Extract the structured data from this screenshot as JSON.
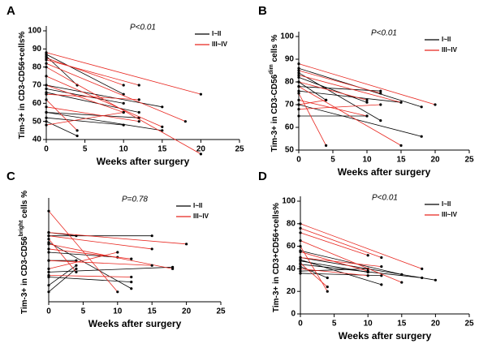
{
  "chart_data": [
    {
      "type": "line",
      "panel": "A",
      "annotation": "P<0.01",
      "x_label": "Weeks after surgery",
      "y_label": [
        {
          "text": "Tim-3+ in CD3-CD56+cells%"
        }
      ],
      "xlim": [
        0,
        25
      ],
      "xticks": [
        0,
        5,
        10,
        15,
        20,
        25
      ],
      "ylim": [
        40,
        100
      ],
      "yticks": [
        40,
        50,
        60,
        70,
        80,
        90,
        100
      ],
      "legend": "upper right",
      "series": [
        {
          "name": "I~II",
          "color": "#000000",
          "lines": [
            {
              "x": [
                0,
                10
              ],
              "y": [
                87,
                65
              ]
            },
            {
              "x": [
                0,
                4
              ],
              "y": [
                86,
                70
              ]
            },
            {
              "x": [
                0,
                15
              ],
              "y": [
                70,
                58
              ]
            },
            {
              "x": [
                0,
                10
              ],
              "y": [
                68,
                60
              ]
            },
            {
              "x": [
                0,
                12
              ],
              "y": [
                66,
                55
              ]
            },
            {
              "x": [
                0,
                15
              ],
              "y": [
                55,
                45
              ]
            },
            {
              "x": [
                0,
                10
              ],
              "y": [
                52,
                48
              ]
            },
            {
              "x": [
                0,
                4
              ],
              "y": [
                50,
                42
              ]
            },
            {
              "x": [
                0,
                12
              ],
              "y": [
                55,
                52
              ]
            }
          ]
        },
        {
          "name": "III~IV",
          "color": "#e8261f",
          "lines": [
            {
              "x": [
                0,
                20
              ],
              "y": [
                88,
                65
              ]
            },
            {
              "x": [
                0,
                10
              ],
              "y": [
                85,
                70
              ]
            },
            {
              "x": [
                0,
                12
              ],
              "y": [
                84,
                70
              ]
            },
            {
              "x": [
                0,
                18
              ],
              "y": [
                82,
                50
              ]
            },
            {
              "x": [
                0,
                20
              ],
              "y": [
                80,
                32
              ]
            },
            {
              "x": [
                0,
                15
              ],
              "y": [
                75,
                47
              ]
            },
            {
              "x": [
                0,
                10
              ],
              "y": [
                70,
                55
              ]
            },
            {
              "x": [
                0,
                12
              ],
              "y": [
                65,
                62
              ]
            },
            {
              "x": [
                0,
                4
              ],
              "y": [
                62,
                45
              ]
            },
            {
              "x": [
                0,
                10
              ],
              "y": [
                48,
                55
              ]
            },
            {
              "x": [
                0,
                12
              ],
              "y": [
                58,
                50
              ]
            }
          ]
        }
      ]
    },
    {
      "type": "line",
      "panel": "B",
      "annotation": "P<0.01",
      "x_label": "Weeks after surgery",
      "y_label": [
        {
          "text": "Tim-3+ in CD3-CD56"
        },
        {
          "text": "dim",
          "superscript": true
        },
        {
          "text": " cells %"
        }
      ],
      "xlim": [
        0,
        25
      ],
      "xticks": [
        0,
        5,
        10,
        15,
        20,
        25
      ],
      "ylim": [
        50,
        100
      ],
      "yticks": [
        50,
        60,
        70,
        80,
        90,
        100
      ],
      "legend": "upper right",
      "series": [
        {
          "name": "I~II",
          "color": "#000000",
          "lines": [
            {
              "x": [
                0,
                18
              ],
              "y": [
                86,
                69
              ]
            },
            {
              "x": [
                0,
                12
              ],
              "y": [
                84,
                63
              ]
            },
            {
              "x": [
                0,
                10
              ],
              "y": [
                82,
                71
              ]
            },
            {
              "x": [
                0,
                4
              ],
              "y": [
                80,
                72
              ]
            },
            {
              "x": [
                0,
                15
              ],
              "y": [
                76,
                71
              ]
            },
            {
              "x": [
                0,
                18
              ],
              "y": [
                70,
                56
              ]
            },
            {
              "x": [
                0,
                10
              ],
              "y": [
                65,
                65
              ]
            },
            {
              "x": [
                0,
                12
              ],
              "y": [
                78,
                76
              ]
            }
          ]
        },
        {
          "name": "III~IV",
          "color": "#e8261f",
          "lines": [
            {
              "x": [
                0,
                20
              ],
              "y": [
                88,
                70
              ]
            },
            {
              "x": [
                0,
                12
              ],
              "y": [
                85,
                75
              ]
            },
            {
              "x": [
                0,
                15
              ],
              "y": [
                83,
                71
              ]
            },
            {
              "x": [
                0,
                10
              ],
              "y": [
                80,
                72
              ]
            },
            {
              "x": [
                0,
                15
              ],
              "y": [
                78,
                52
              ]
            },
            {
              "x": [
                0,
                4
              ],
              "y": [
                75,
                52
              ]
            },
            {
              "x": [
                0,
                10
              ],
              "y": [
                72,
                65
              ]
            },
            {
              "x": [
                0,
                4
              ],
              "y": [
                70,
                72
              ]
            },
            {
              "x": [
                0,
                12
              ],
              "y": [
                68,
                70
              ]
            }
          ]
        }
      ]
    },
    {
      "type": "line",
      "panel": "C",
      "annotation": "P=0.78",
      "x_label": "Weeks after surgery",
      "y_label": [
        {
          "text": "Tim-3+ in CD3-CD56"
        },
        {
          "text": "bright",
          "superscript": true
        },
        {
          "text": " cells %"
        }
      ],
      "xlim": [
        0,
        25
      ],
      "xticks": [
        0,
        5,
        10,
        15,
        20,
        25
      ],
      "ylim": [
        30,
        90
      ],
      "legend": "upper right",
      "series": [
        {
          "name": "I~II",
          "color": "#000000",
          "lines": [
            {
              "x": [
                0,
                4
              ],
              "y": [
                72,
                70
              ]
            },
            {
              "x": [
                0,
                15
              ],
              "y": [
                70,
                70
              ]
            },
            {
              "x": [
                0,
                12
              ],
              "y": [
                66,
                38
              ]
            },
            {
              "x": [
                0,
                10
              ],
              "y": [
                60,
                57
              ]
            },
            {
              "x": [
                0,
                4
              ],
              "y": [
                55,
                55
              ]
            },
            {
              "x": [
                0,
                18
              ],
              "y": [
                48,
                51
              ]
            },
            {
              "x": [
                0,
                12
              ],
              "y": [
                45,
                42
              ]
            },
            {
              "x": [
                0,
                4
              ],
              "y": [
                36,
                50
              ]
            },
            {
              "x": [
                0,
                4
              ],
              "y": [
                40,
                52
              ]
            }
          ]
        },
        {
          "name": "III~IV",
          "color": "#e8261f",
          "lines": [
            {
              "x": [
                0,
                10
              ],
              "y": [
                85,
                36
              ]
            },
            {
              "x": [
                0,
                20
              ],
              "y": [
                72,
                65
              ]
            },
            {
              "x": [
                0,
                15
              ],
              "y": [
                70,
                62
              ]
            },
            {
              "x": [
                0,
                4
              ],
              "y": [
                68,
                48
              ]
            },
            {
              "x": [
                0,
                18
              ],
              "y": [
                65,
                50
              ]
            },
            {
              "x": [
                0,
                12
              ],
              "y": [
                62,
                56
              ]
            },
            {
              "x": [
                0,
                15
              ],
              "y": [
                55,
                52
              ]
            },
            {
              "x": [
                0,
                10
              ],
              "y": [
                50,
                60
              ]
            },
            {
              "x": [
                0,
                12
              ],
              "y": [
                46,
                45
              ]
            }
          ]
        }
      ]
    },
    {
      "type": "line",
      "panel": "D",
      "annotation": "P<0.01",
      "x_label": "Weeks after surgery",
      "y_label": [
        {
          "text": "Tim-3+ in CD3+CD56+cells%"
        }
      ],
      "xlim": [
        0,
        25
      ],
      "xticks": [
        0,
        5,
        10,
        15,
        20,
        25
      ],
      "ylim": [
        0,
        100
      ],
      "yticks": [
        0,
        20,
        40,
        60,
        80,
        100
      ],
      "legend": "upper right",
      "series": [
        {
          "name": "I~II",
          "color": "#000000",
          "lines": [
            {
              "x": [
                0,
                15
              ],
              "y": [
                56,
                35
              ]
            },
            {
              "x": [
                0,
                20
              ],
              "y": [
                50,
                30
              ]
            },
            {
              "x": [
                0,
                12
              ],
              "y": [
                48,
                26
              ]
            },
            {
              "x": [
                0,
                10
              ],
              "y": [
                47,
                37
              ]
            },
            {
              "x": [
                0,
                18
              ],
              "y": [
                44,
                32
              ]
            },
            {
              "x": [
                0,
                4
              ],
              "y": [
                42,
                32
              ]
            },
            {
              "x": [
                0,
                10
              ],
              "y": [
                38,
                40
              ]
            },
            {
              "x": [
                0,
                12
              ],
              "y": [
                36,
                34
              ]
            }
          ]
        },
        {
          "name": "III~IV",
          "color": "#e8261f",
          "lines": [
            {
              "x": [
                0,
                18
              ],
              "y": [
                80,
                40
              ]
            },
            {
              "x": [
                0,
                12
              ],
              "y": [
                76,
                50
              ]
            },
            {
              "x": [
                0,
                10
              ],
              "y": [
                72,
                52
              ]
            },
            {
              "x": [
                0,
                15
              ],
              "y": [
                65,
                28
              ]
            },
            {
              "x": [
                0,
                4
              ],
              "y": [
                60,
                20
              ]
            },
            {
              "x": [
                0,
                10
              ],
              "y": [
                55,
                38
              ]
            },
            {
              "x": [
                0,
                12
              ],
              "y": [
                50,
                42
              ]
            },
            {
              "x": [
                0,
                4
              ],
              "y": [
                45,
                24
              ]
            },
            {
              "x": [
                0,
                10
              ],
              "y": [
                40,
                34
              ]
            }
          ]
        }
      ]
    }
  ]
}
